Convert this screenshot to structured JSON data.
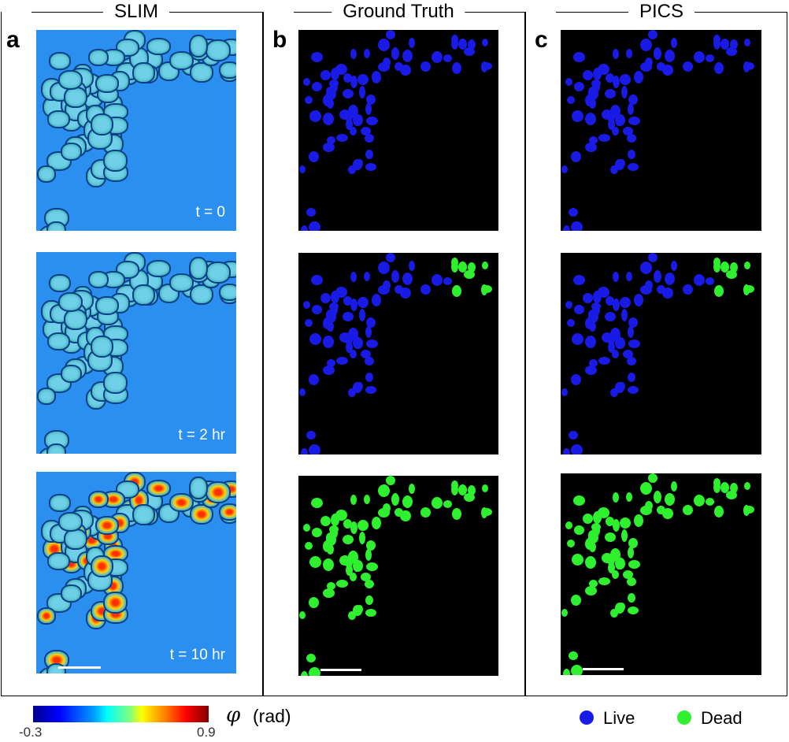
{
  "columns": [
    {
      "letter": "a",
      "title": "SLIM"
    },
    {
      "letter": "b",
      "title": "Ground Truth"
    },
    {
      "letter": "c",
      "title": "PICS"
    }
  ],
  "time_labels": [
    "t = 0",
    "t = 2 hr",
    "t = 10 hr"
  ],
  "colorbar": {
    "min_label": "-0.3",
    "max_label": "0.9",
    "symbol": "φ",
    "unit": "(rad)",
    "colormap": "jet"
  },
  "legend": [
    {
      "label": "Live",
      "color": "#1a1ae6"
    },
    {
      "label": "Dead",
      "color": "#2ef02e"
    }
  ],
  "colors": {
    "slim_background": "#2b8ff0",
    "live": "#1a1ae6",
    "dead": "#2ef02e",
    "segmentation_background": "#000000"
  }
}
